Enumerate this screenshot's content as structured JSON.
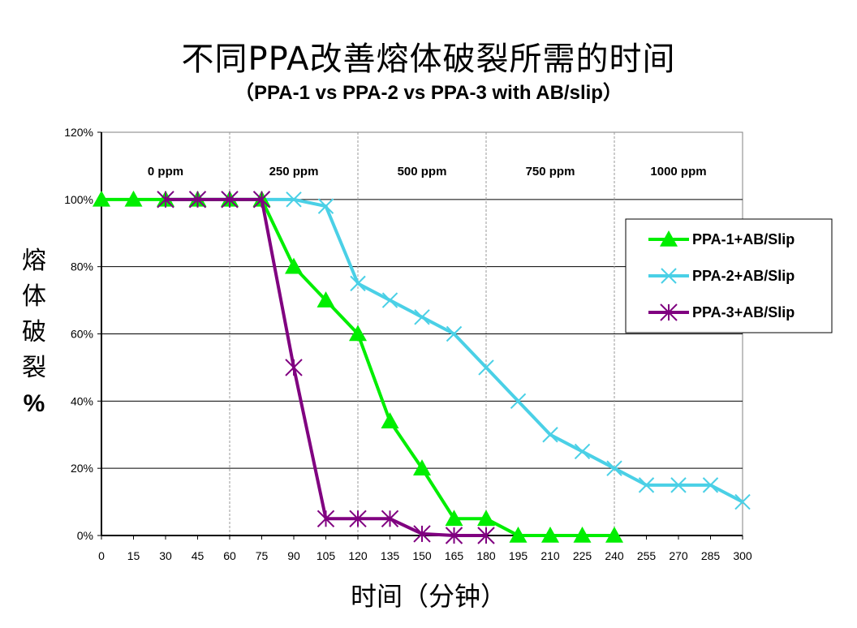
{
  "chart_data": {
    "type": "line",
    "title": "不同PPA改善熔体破裂所需的时间",
    "subtitle": "（PPA-1 vs PPA-2 vs PPA-3 with AB/slip）",
    "ylabel": "熔体破裂%",
    "xlabel": "时间（分钟）",
    "x_ticks": [
      0,
      15,
      30,
      45,
      60,
      75,
      90,
      105,
      120,
      135,
      150,
      165,
      180,
      195,
      210,
      225,
      240,
      255,
      270,
      285,
      300
    ],
    "y_ticks": [
      "0%",
      "20%",
      "40%",
      "60%",
      "80%",
      "100%",
      "120%"
    ],
    "xlim": [
      0,
      300
    ],
    "ylim": [
      0,
      120
    ],
    "grid": "horizontal major + vertical band dividers",
    "legend_position": "right",
    "bands": [
      {
        "label": "0 ppm",
        "x_end": 60
      },
      {
        "label": "250 ppm",
        "x_end": 120
      },
      {
        "label": "500 ppm",
        "x_end": 180
      },
      {
        "label": "750 ppm",
        "x_end": 240
      },
      {
        "label": "1000 ppm",
        "x_end": 300
      }
    ],
    "series": [
      {
        "name": "PPA-1+AB/Slip",
        "color": "#00ee00",
        "marker": "triangle",
        "x": [
          0,
          15,
          30,
          45,
          60,
          75,
          90,
          105,
          120,
          135,
          150,
          165,
          180,
          195,
          210,
          225,
          240
        ],
        "y": [
          100,
          100,
          100,
          100,
          100,
          100,
          80,
          70,
          60,
          34,
          20,
          5,
          5,
          0,
          0,
          0,
          0
        ]
      },
      {
        "name": "PPA-2+AB/Slip",
        "color": "#4ad0e6",
        "marker": "x",
        "x": [
          30,
          45,
          60,
          75,
          90,
          105,
          120,
          135,
          150,
          165,
          180,
          195,
          210,
          225,
          240,
          255,
          270,
          285,
          300
        ],
        "y": [
          100,
          100,
          100,
          100,
          100,
          98,
          75,
          70,
          65,
          60,
          50,
          40,
          30,
          25,
          20,
          15,
          15,
          15,
          10
        ]
      },
      {
        "name": "PPA-3+AB/Slip",
        "color": "#800080",
        "marker": "asterisk",
        "x": [
          30,
          45,
          60,
          75,
          90,
          105,
          120,
          135,
          150,
          165,
          180
        ],
        "y": [
          100,
          100,
          100,
          100,
          50,
          5,
          5,
          5,
          0.5,
          0,
          0
        ]
      }
    ]
  }
}
